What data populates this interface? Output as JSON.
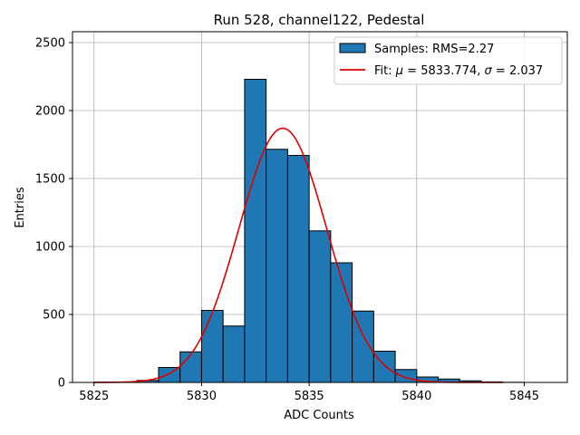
{
  "chart_data": {
    "type": "bar",
    "title": "Run 528, channel122, Pedestal",
    "xlabel": "ADC Counts",
    "ylabel": "Entries",
    "xlim": [
      5824,
      5847
    ],
    "ylim": [
      0,
      2580
    ],
    "grid": true,
    "legend_position": "top-right",
    "xticks": [
      5825,
      5830,
      5835,
      5840,
      5845
    ],
    "yticks": [
      0,
      500,
      1000,
      1500,
      2000,
      2500
    ],
    "histogram": {
      "name": "Samples: RMS=2.27",
      "color": "#1f77b4",
      "bin_width": 1,
      "bin_starts": [
        5825,
        5826,
        5827,
        5828,
        5829,
        5830,
        5831,
        5832,
        5833,
        5834,
        5835,
        5836,
        5837,
        5838,
        5839,
        5840,
        5841,
        5842,
        5843,
        5844,
        5845
      ],
      "counts": [
        2,
        3,
        15,
        110,
        225,
        530,
        415,
        2230,
        1715,
        1670,
        1115,
        880,
        525,
        230,
        95,
        40,
        25,
        12,
        4,
        1,
        0
      ]
    },
    "fit": {
      "name_prefix": "Fit: ",
      "mu_symbol": "μ",
      "mu_value": "5833.774",
      "sigma_symbol": "σ",
      "sigma_value": "2.037",
      "color": "#e00000",
      "mu": 5833.774,
      "sigma": 2.037,
      "amplitude": 1870,
      "x_range": [
        5825,
        5844
      ]
    }
  }
}
